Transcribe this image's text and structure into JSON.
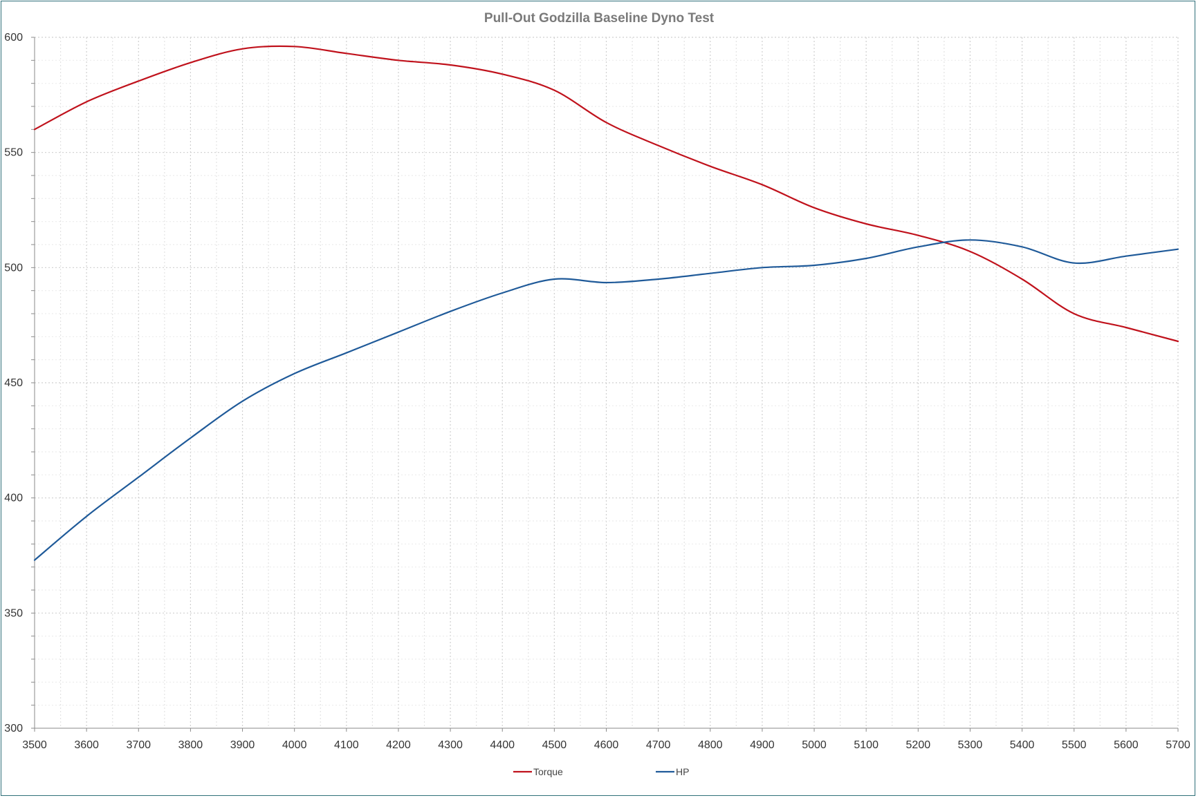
{
  "chart_data": {
    "type": "line",
    "title": "Pull-Out Godzilla Baseline Dyno Test",
    "xlabel": "",
    "ylabel": "",
    "xlim": [
      3500,
      5700
    ],
    "ylim": [
      300,
      600
    ],
    "x_ticks": [
      "3500",
      "3600",
      "3700",
      "3800",
      "3900",
      "4000",
      "4100",
      "4200",
      "4300",
      "4400",
      "4500",
      "4600",
      "4700",
      "4800",
      "4900",
      "5000",
      "5100",
      "5200",
      "5300",
      "5400",
      "5500",
      "5600",
      "5700"
    ],
    "y_ticks": [
      "300",
      "350",
      "400",
      "450",
      "500",
      "550",
      "600"
    ],
    "grid": true,
    "legend_position": "bottom",
    "x": [
      3500,
      3600,
      3700,
      3800,
      3900,
      4000,
      4100,
      4200,
      4300,
      4400,
      4500,
      4600,
      4700,
      4800,
      4900,
      5000,
      5100,
      5200,
      5300,
      5400,
      5500,
      5600,
      5700
    ],
    "series": [
      {
        "name": "Torque",
        "color": "#c0121c",
        "values": [
          560,
          572,
          581,
          589,
          595,
          596,
          593,
          590,
          588,
          584,
          577,
          563,
          553,
          544,
          536,
          526,
          519,
          514,
          507,
          495,
          480,
          474,
          468
        ]
      },
      {
        "name": "HP",
        "color": "#1f5a99",
        "values": [
          373,
          392,
          409,
          426,
          442,
          454,
          463,
          472,
          481,
          489,
          495,
          493.5,
          495,
          497.5,
          500,
          501,
          504,
          509,
          512,
          509,
          502,
          505,
          508
        ]
      }
    ]
  }
}
